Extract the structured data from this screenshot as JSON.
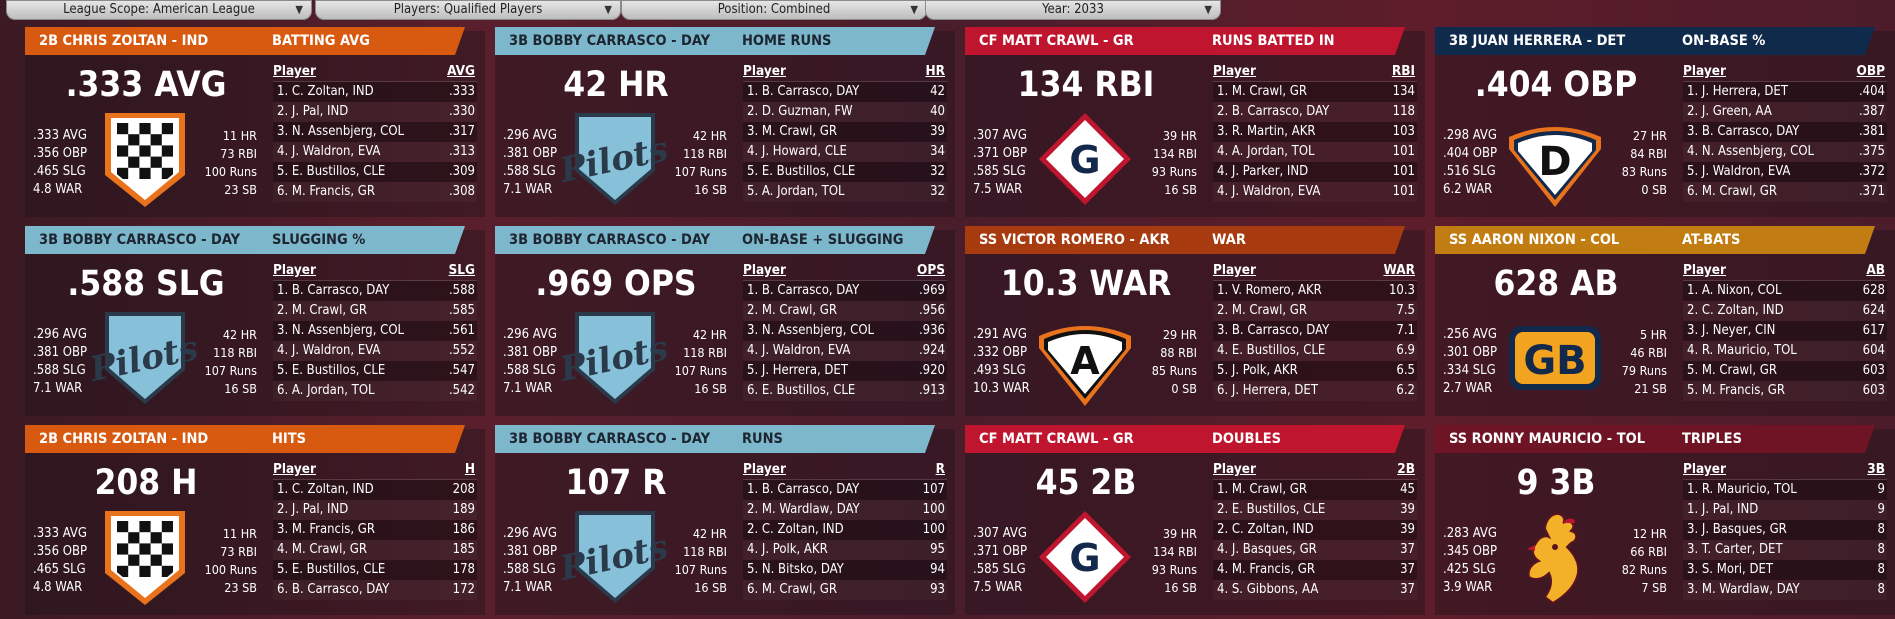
{
  "filters": [
    {
      "label": "League Scope: American League"
    },
    {
      "label": "Players: Qualified Players"
    },
    {
      "label": "Position: Combined"
    },
    {
      "label": "Year: 2033"
    }
  ],
  "cards": [
    {
      "header": "2B CHRIS ZOLTAN - IND",
      "stat": "BATTING AVG",
      "big": ".333 AVG",
      "left": [
        ".333 AVG",
        ".356 OBP",
        ".465 SLG",
        "4.8 WAR"
      ],
      "right": [
        "11 HR",
        "73 RBI",
        "100 Runs",
        "23 SB"
      ],
      "col": "AVG",
      "colors": {
        "header": "#d75a10"
      },
      "logo": "checker-shield-icon",
      "rows": [
        [
          "1. C. Zoltan, IND",
          ".333"
        ],
        [
          "2. J. Pal, IND",
          ".330"
        ],
        [
          "3. N. Assenbjerg, COL",
          ".317"
        ],
        [
          "4. J. Waldron, EVA",
          ".313"
        ],
        [
          "5. E. Bustillos, CLE",
          ".309"
        ],
        [
          "6. M. Francis, GR",
          ".308"
        ]
      ]
    },
    {
      "header": "3B BOBBY CARRASCO - DAY",
      "stat": "HOME RUNS",
      "big": "42 HR",
      "left": [
        ".296 AVG",
        ".381 OBP",
        ".588 SLG",
        "7.1 WAR"
      ],
      "right": [
        "42 HR",
        "118 RBI",
        "107 Runs",
        "16 SB"
      ],
      "col": "HR",
      "colors": {
        "header": "#7db7cc"
      },
      "logo": "pilots-shield-icon",
      "logo_text": "Pilots",
      "rows": [
        [
          "1. B. Carrasco, DAY",
          "42"
        ],
        [
          "2. D. Guzman, FW",
          "40"
        ],
        [
          "3. M. Crawl, GR",
          "39"
        ],
        [
          "4. J. Howard, CLE",
          "34"
        ],
        [
          "5. E. Bustillos, CLE",
          "32"
        ],
        [
          "5. A. Jordan, TOL",
          "32"
        ]
      ]
    },
    {
      "header": "CF MATT CRAWL - GR",
      "stat": "RUNS BATTED IN",
      "big": "134 RBI",
      "left": [
        ".307 AVG",
        ".371 OBP",
        ".585 SLG",
        "7.5 WAR"
      ],
      "right": [
        "39 HR",
        "134 RBI",
        "93 Runs",
        "16 SB"
      ],
      "col": "RBI",
      "colors": {
        "header": "#c0152f"
      },
      "logo": "g-diamond-icon",
      "logo_text": "G",
      "rows": [
        [
          "1. M. Crawl, GR",
          "134"
        ],
        [
          "2. B. Carrasco, DAY",
          "118"
        ],
        [
          "3. R. Martin, AKR",
          "103"
        ],
        [
          "4. A. Jordan, TOL",
          "101"
        ],
        [
          "4. J. Parker, IND",
          "101"
        ],
        [
          "4. J. Waldron, EVA",
          "101"
        ]
      ]
    },
    {
      "header": "3B JUAN HERRERA - DET",
      "stat": "ON-BASE %",
      "big": ".404 OBP",
      "left": [
        ".298 AVG",
        ".404 OBP",
        ".516 SLG",
        "6.2 WAR"
      ],
      "right": [
        "27 HR",
        "84 RBI",
        "83 Runs",
        "0 SB"
      ],
      "col": "OBP",
      "colors": {
        "header": "#102a4c"
      },
      "logo": "d-plate-icon",
      "logo_text": "D",
      "rows": [
        [
          "1. J. Herrera, DET",
          ".404"
        ],
        [
          "2. J. Green, AA",
          ".387"
        ],
        [
          "3. B. Carrasco, DAY",
          ".381"
        ],
        [
          "4. N. Assenbjerg, COL",
          ".375"
        ],
        [
          "5. J. Waldron, EVA",
          ".372"
        ],
        [
          "6. M. Crawl, GR",
          ".371"
        ]
      ]
    },
    {
      "header": "3B BOBBY CARRASCO - DAY",
      "stat": "SLUGGING %",
      "big": ".588 SLG",
      "left": [
        ".296 AVG",
        ".381 OBP",
        ".588 SLG",
        "7.1 WAR"
      ],
      "right": [
        "42 HR",
        "118 RBI",
        "107 Runs",
        "16 SB"
      ],
      "col": "SLG",
      "colors": {
        "header": "#7db7cc"
      },
      "logo": "pilots-shield-icon",
      "logo_text": "Pilots",
      "rows": [
        [
          "1. B. Carrasco, DAY",
          ".588"
        ],
        [
          "2. M. Crawl, GR",
          ".585"
        ],
        [
          "3. N. Assenbjerg, COL",
          ".561"
        ],
        [
          "4. J. Waldron, EVA",
          ".552"
        ],
        [
          "5. E. Bustillos, CLE",
          ".547"
        ],
        [
          "6. A. Jordan, TOL",
          ".542"
        ]
      ]
    },
    {
      "header": "3B BOBBY CARRASCO - DAY",
      "stat": "ON-BASE + SLUGGING",
      "big": ".969 OPS",
      "left": [
        ".296 AVG",
        ".381 OBP",
        ".588 SLG",
        "7.1 WAR"
      ],
      "right": [
        "42 HR",
        "118 RBI",
        "107 Runs",
        "16 SB"
      ],
      "col": "OPS",
      "colors": {
        "header": "#7db7cc"
      },
      "logo": "pilots-shield-icon",
      "logo_text": "Pilots",
      "rows": [
        [
          "1. B. Carrasco, DAY",
          ".969"
        ],
        [
          "2. M. Crawl, GR",
          ".956"
        ],
        [
          "3. N. Assenbjerg, COL",
          ".936"
        ],
        [
          "4. J. Waldron, EVA",
          ".924"
        ],
        [
          "5. J. Herrera, DET",
          ".920"
        ],
        [
          "6. E. Bustillos, CLE",
          ".913"
        ]
      ]
    },
    {
      "header": "SS VICTOR ROMERO - AKR",
      "stat": "WAR",
      "big": "10.3 WAR",
      "left": [
        ".291 AVG",
        ".332 OBP",
        ".493 SLG",
        "10.3 WAR"
      ],
      "right": [
        "29 HR",
        "88 RBI",
        "85 Runs",
        "0 SB"
      ],
      "col": "WAR",
      "colors": {
        "header": "#a83a10"
      },
      "logo": "a-plate-icon",
      "logo_text": "A",
      "rows": [
        [
          "1. V. Romero, AKR",
          "10.3"
        ],
        [
          "2. M. Crawl, GR",
          "7.5"
        ],
        [
          "3. B. Carrasco, DAY",
          "7.1"
        ],
        [
          "4. E. Bustillos, CLE",
          "6.9"
        ],
        [
          "5. J. Polk, AKR",
          "6.5"
        ],
        [
          "6. J. Herrera, DET",
          "6.2"
        ]
      ]
    },
    {
      "header": "SS AARON NIXON - COL",
      "stat": "AT-BATS",
      "big": "628 AB",
      "left": [
        ".256 AVG",
        ".301 OBP",
        ".334 SLG",
        "2.7 WAR"
      ],
      "right": [
        "5 HR",
        "46 RBI",
        "79 Runs",
        "21 SB"
      ],
      "col": "AB",
      "colors": {
        "header": "#c27d12"
      },
      "logo": "gb-badge-icon",
      "logo_text": "GB",
      "rows": [
        [
          "1. A. Nixon, COL",
          "628"
        ],
        [
          "2. C. Zoltan, IND",
          "624"
        ],
        [
          "3. J. Neyer, CIN",
          "617"
        ],
        [
          "4. R. Mauricio, TOL",
          "604"
        ],
        [
          "5. M. Crawl, GR",
          "603"
        ],
        [
          "5. M. Francis, GR",
          "603"
        ]
      ]
    },
    {
      "header": "2B CHRIS ZOLTAN - IND",
      "stat": "HITS",
      "big": "208 H",
      "left": [
        ".333 AVG",
        ".356 OBP",
        ".465 SLG",
        "4.8 WAR"
      ],
      "right": [
        "11 HR",
        "73 RBI",
        "100 Runs",
        "23 SB"
      ],
      "col": "H",
      "colors": {
        "header": "#d75a10"
      },
      "logo": "checker-shield-icon",
      "rows": [
        [
          "1. C. Zoltan, IND",
          "208"
        ],
        [
          "2. J. Pal, IND",
          "189"
        ],
        [
          "3. M. Francis, GR",
          "186"
        ],
        [
          "4. M. Crawl, GR",
          "185"
        ],
        [
          "5. E. Bustillos, CLE",
          "178"
        ],
        [
          "6. B. Carrasco, DAY",
          "172"
        ]
      ]
    },
    {
      "header": "3B BOBBY CARRASCO - DAY",
      "stat": "RUNS",
      "big": "107 R",
      "left": [
        ".296 AVG",
        ".381 OBP",
        ".588 SLG",
        "7.1 WAR"
      ],
      "right": [
        "42 HR",
        "118 RBI",
        "107 Runs",
        "16 SB"
      ],
      "col": "R",
      "colors": {
        "header": "#7db7cc"
      },
      "logo": "pilots-shield-icon",
      "logo_text": "Pilots",
      "rows": [
        [
          "1. B. Carrasco, DAY",
          "107"
        ],
        [
          "2. M. Wardlaw, DAY",
          "100"
        ],
        [
          "2. C. Zoltan, IND",
          "100"
        ],
        [
          "4. J. Polk, AKR",
          "95"
        ],
        [
          "5. N. Bitsko, DAY",
          "94"
        ],
        [
          "6. M. Crawl, GR",
          "93"
        ]
      ]
    },
    {
      "header": "CF MATT CRAWL - GR",
      "stat": "DOUBLES",
      "big": "45 2B",
      "left": [
        ".307 AVG",
        ".371 OBP",
        ".585 SLG",
        "7.5 WAR"
      ],
      "right": [
        "39 HR",
        "134 RBI",
        "93 Runs",
        "16 SB"
      ],
      "col": "2B",
      "colors": {
        "header": "#c0152f"
      },
      "logo": "g-diamond-icon",
      "logo_text": "G",
      "rows": [
        [
          "1. M. Crawl, GR",
          "45"
        ],
        [
          "2. E. Bustillos, CLE",
          "39"
        ],
        [
          "2. C. Zoltan, IND",
          "39"
        ],
        [
          "4. J. Basques, GR",
          "37"
        ],
        [
          "4. M. Francis, GR",
          "37"
        ],
        [
          "4. S. Gibbons, AA",
          "37"
        ]
      ]
    },
    {
      "header": "SS RONNY MAURICIO - TOL",
      "stat": "TRIPLES",
      "big": "9 3B",
      "left": [
        ".283 AVG",
        ".345 OBP",
        ".425 SLG",
        "3.9 WAR"
      ],
      "right": [
        "12 HR",
        "66 RBI",
        "82 Runs",
        "7 SB"
      ],
      "col": "3B",
      "colors": {
        "header": "#6e1424"
      },
      "logo": "rooster-icon",
      "rows": [
        [
          "1. R. Mauricio, TOL",
          "9"
        ],
        [
          "1. J. Pal, IND",
          "9"
        ],
        [
          "3. J. Basques, GR",
          "8"
        ],
        [
          "3. T. Carter, DET",
          "8"
        ],
        [
          "3. S. Mori, DET",
          "8"
        ],
        [
          "3. M. Wardlaw, DAY",
          "8"
        ]
      ]
    }
  ],
  "table_player_header": "Player"
}
